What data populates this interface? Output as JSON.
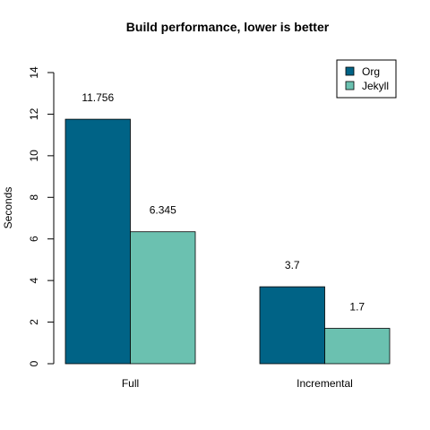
{
  "chart_data": {
    "type": "bar",
    "title": "Build performance, lower is better",
    "xlabel": "",
    "ylabel": "Seconds",
    "ylim": [
      0,
      14
    ],
    "yticks": [
      0,
      2,
      4,
      6,
      8,
      10,
      12,
      14
    ],
    "categories": [
      "Full",
      "Incremental"
    ],
    "series": [
      {
        "name": "Org",
        "values": [
          11.756,
          3.7
        ],
        "labels": [
          "11.756",
          "3.7"
        ],
        "color": "#006386"
      },
      {
        "name": "Jekyll",
        "values": [
          6.345,
          1.7
        ],
        "labels": [
          "6.345",
          "1.7"
        ],
        "color": "#6bc1b0"
      }
    ],
    "legend_position": "top-right",
    "grid": false
  }
}
